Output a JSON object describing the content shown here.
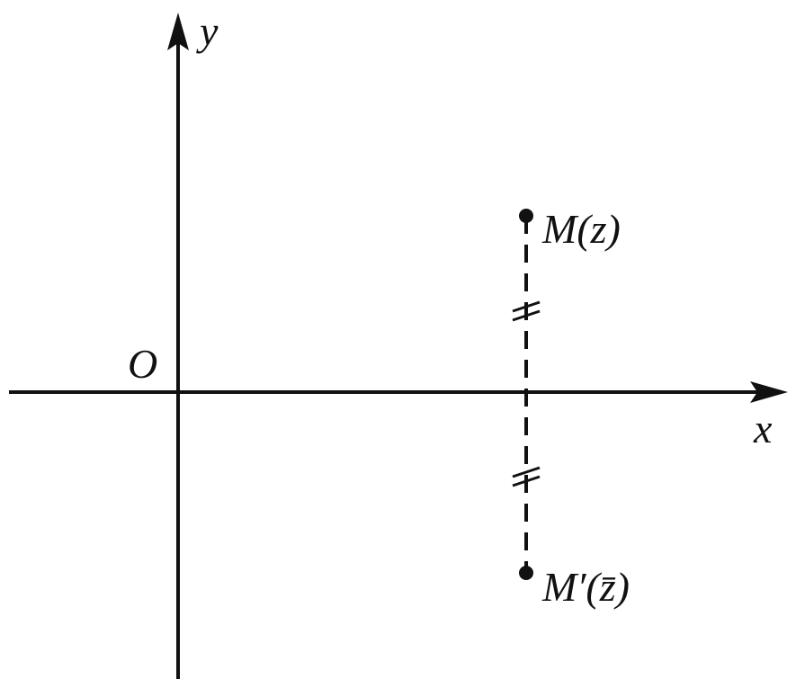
{
  "axes": {
    "y_label": "y",
    "x_label": "x",
    "origin_label": "O"
  },
  "points": [
    {
      "label": "M(z)"
    },
    {
      "label": "M′(z̄)"
    }
  ]
}
